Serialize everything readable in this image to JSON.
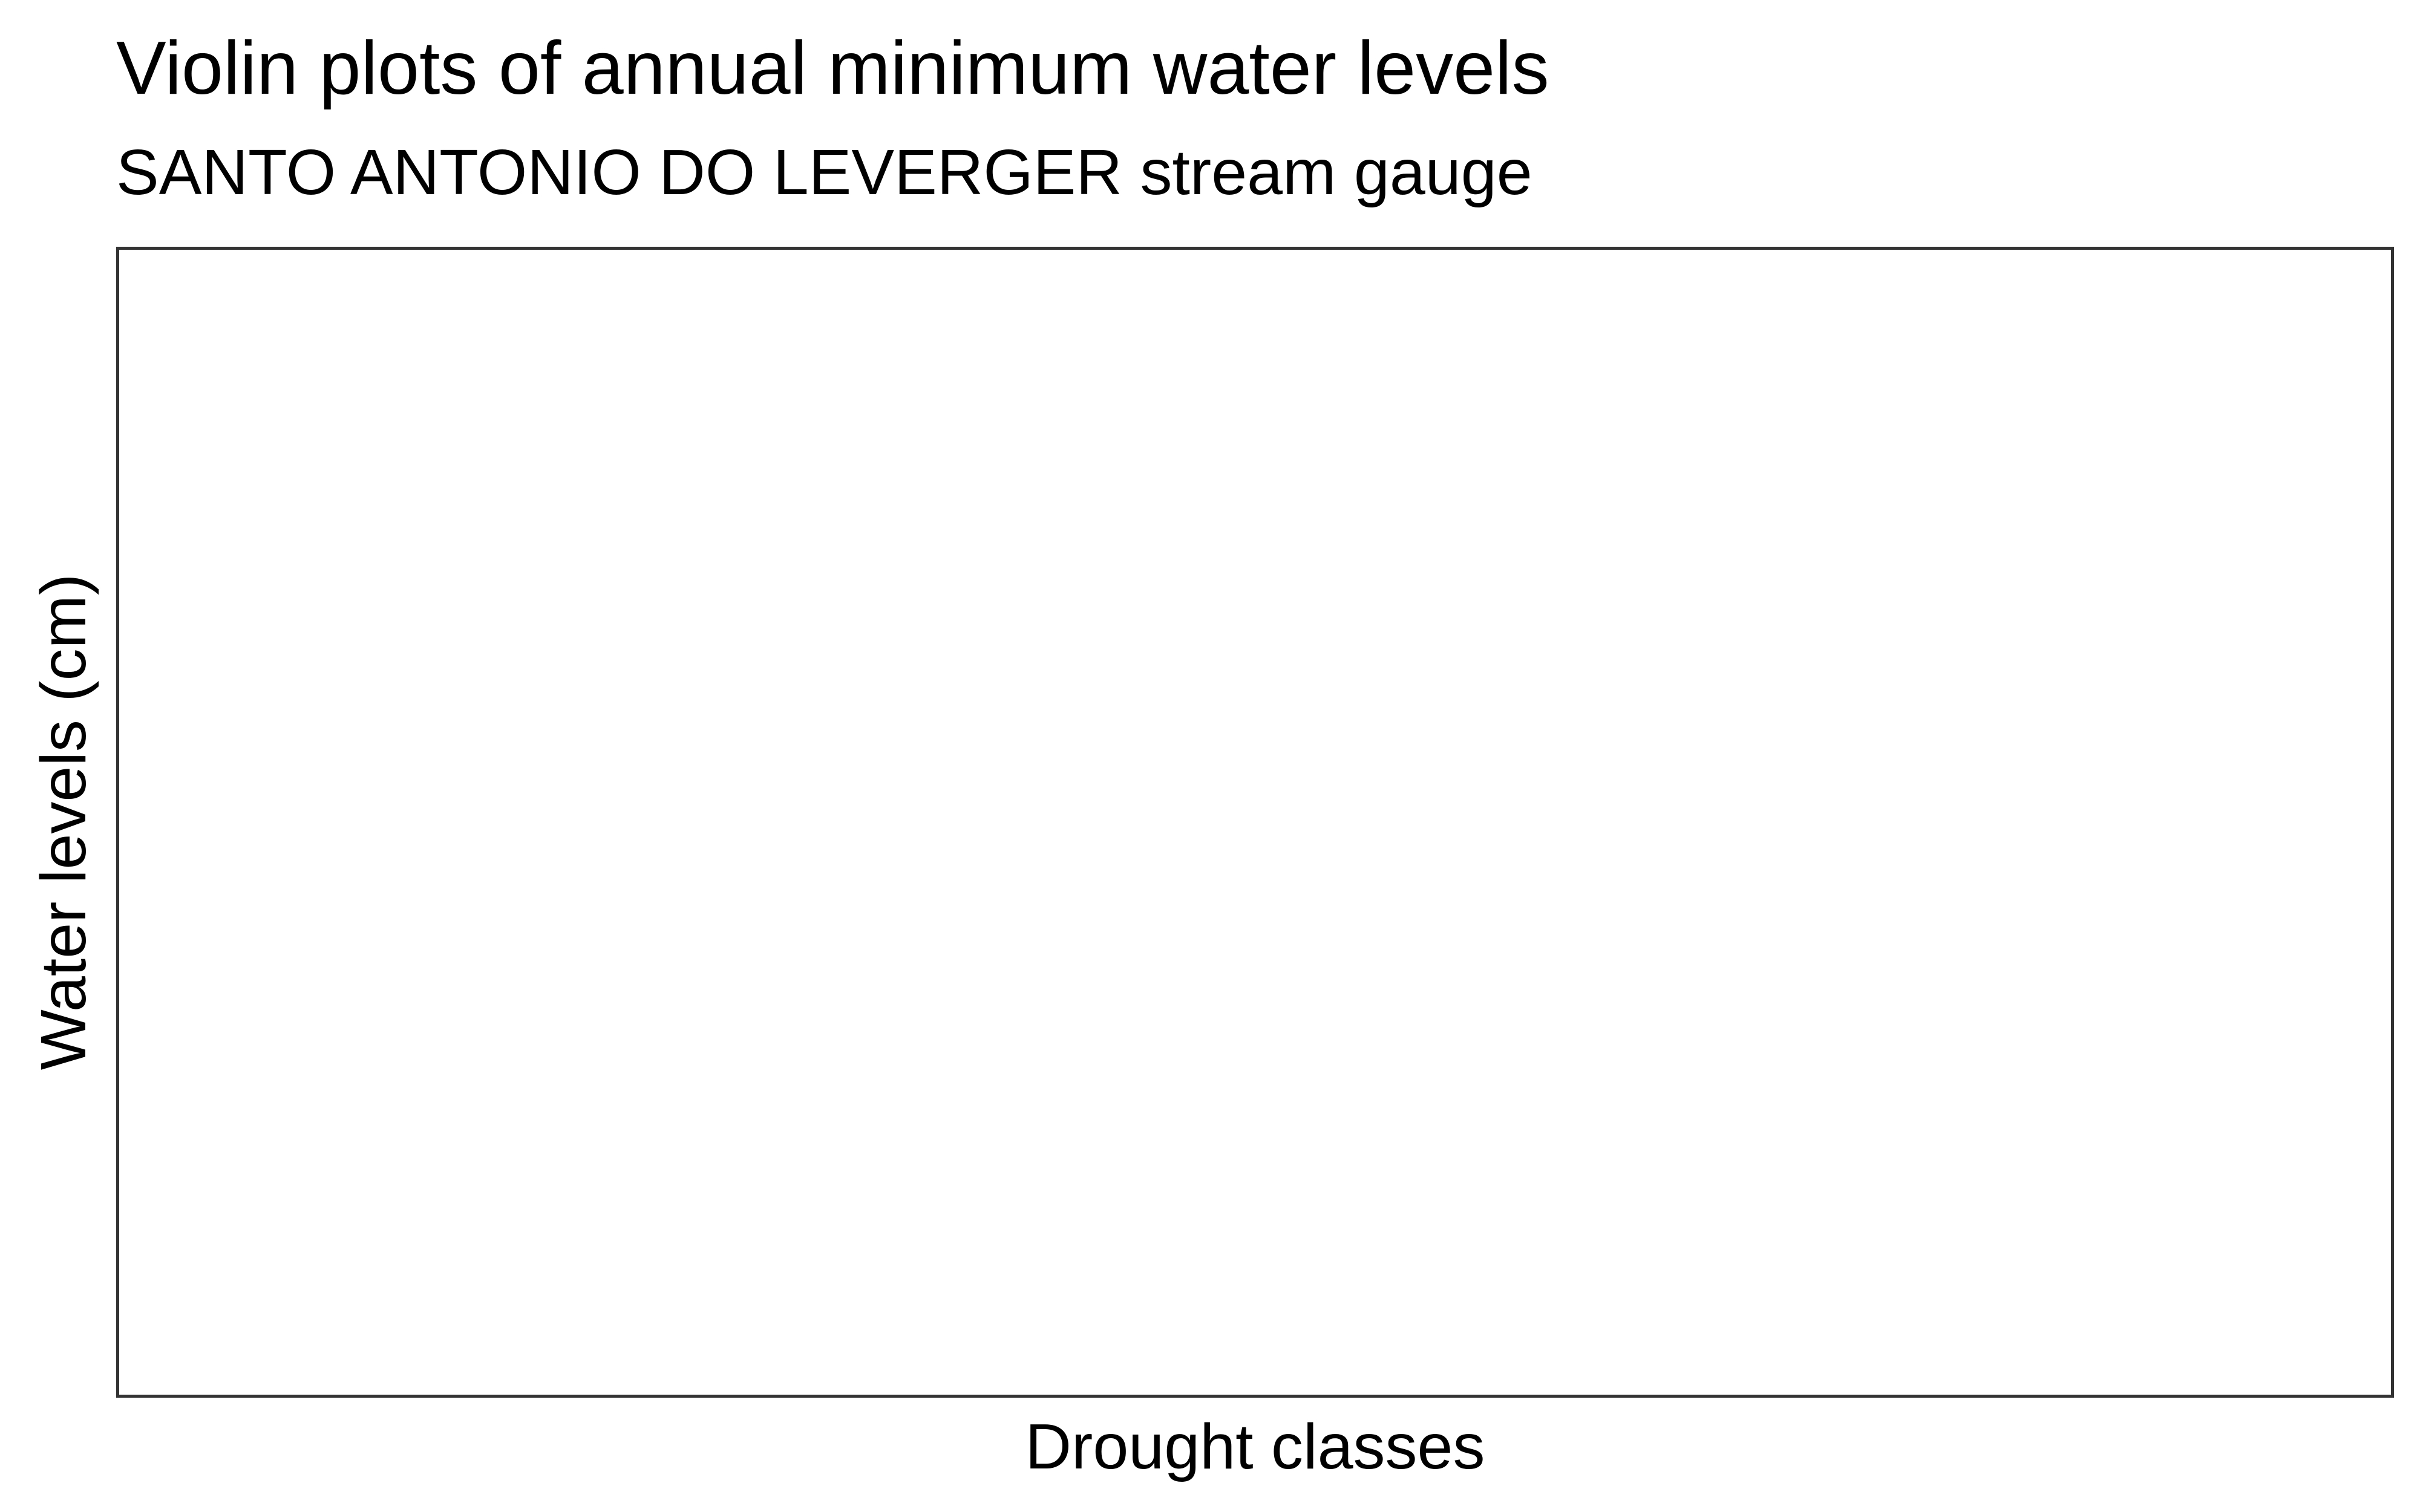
{
  "chart_data": {
    "type": "violin",
    "title": "Violin plots of annual minimum water levels",
    "subtitle": "SANTO ANTONIO DO LEVERGER stream gauge",
    "xlabel": "Drought classes",
    "ylabel": "Water levels (cm)",
    "categories": [],
    "series": [],
    "grid": false,
    "legend": "none",
    "colors": {
      "panel_border": "#333333",
      "background": "#ffffff",
      "text": "#000000"
    }
  }
}
